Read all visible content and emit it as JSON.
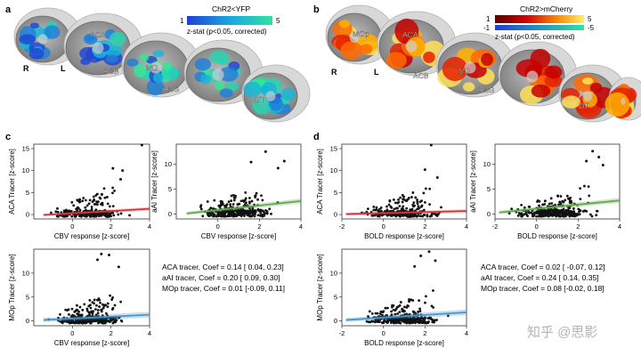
{
  "panel_labels": {
    "a": "a",
    "b": "b",
    "c": "c",
    "d": "d"
  },
  "brain_a": {
    "colorbar_title": "ChR2<YFP",
    "colorbar_min": "1",
    "colorbar_max": "5",
    "colorbar_caption": "z-stat (p<0.05, corrected)",
    "orientation_r": "R",
    "orientation_l": "L",
    "regions": [
      "ACA",
      "ACB",
      "MD",
      "AMG",
      "DT"
    ]
  },
  "brain_b": {
    "colorbar_title": "ChR2>mCherry",
    "colorbar_min": "1",
    "colorbar_max": "5",
    "colorbar_neg_min": "-1",
    "colorbar_neg_max": "-5",
    "colorbar_caption": "z-stat (p<0.05, corrected)",
    "orientation_r": "R",
    "orientation_l": "L",
    "regions": [
      "MOp",
      "ACA",
      "ACB",
      "MD",
      "AMG",
      "DT"
    ]
  },
  "colors": {
    "aca_line": "#d0373a",
    "aai_line": "#63a84f",
    "mop_line": "#4a95c9",
    "point": "#111111",
    "cool_low": "#1f3fd6",
    "cool_high": "#2fe3a0",
    "hot_low": "#b40000",
    "hot_high": "#fff066"
  },
  "stats_c": [
    "ACA tracer,  Coef = 0.14 [ 0.04, 0.23]",
    "aAI tracer,   Coef = 0.20  [ 0.09, 0.30]",
    "MOp tracer, Coef = 0.01  [-0.09, 0.11]"
  ],
  "stats_d": [
    "ACA tracer,  Coef = 0.02 [ -0.07, 0.12]",
    "aAI tracer,   Coef = 0.24  [ 0.14, 0.35]",
    "MOp tracer, Coef = 0.08  [-0.02, 0.18]"
  ],
  "watermark": "知乎 @思影",
  "chart_data": [
    {
      "id": "c_aca",
      "panel": "c",
      "type": "scatter",
      "xlabel": "CBV response [z-score]",
      "ylabel": "ACA Tracer [z-score]",
      "xlim": [
        -2,
        4
      ],
      "ylim": [
        -1,
        16
      ],
      "xticks": [
        0,
        2,
        4
      ],
      "yticks": [
        0,
        5,
        10,
        15
      ],
      "fit": {
        "x0": -1.5,
        "y0": -0.1,
        "x1": 4,
        "y1": 1.3
      },
      "ci_half_width": 0.4,
      "highlights": [
        {
          "x": 3.6,
          "y": 15.8
        },
        {
          "x": 2.1,
          "y": 10.5
        },
        {
          "x": 2.6,
          "y": 10
        },
        {
          "x": 2.5,
          "y": 8
        }
      ],
      "n_points": 260,
      "seed": 11
    },
    {
      "id": "c_aai",
      "panel": "c",
      "type": "scatter",
      "xlabel": "CBV response [z-score]",
      "ylabel": "aAI Tracer [z-score]",
      "xlim": [
        -2,
        4
      ],
      "ylim": [
        -1,
        14
      ],
      "xticks": [
        0,
        2,
        4
      ],
      "yticks": [
        0,
        5,
        10
      ],
      "fit": {
        "x0": -1.5,
        "y0": 0.1,
        "x1": 4,
        "y1": 2.6
      },
      "ci_half_width": 0.5,
      "highlights": [
        {
          "x": 2.3,
          "y": 12.5
        },
        {
          "x": 1.6,
          "y": 10.4
        },
        {
          "x": 3.2,
          "y": 10.6
        },
        {
          "x": 2.9,
          "y": 9.2
        }
      ],
      "n_points": 320,
      "seed": 23
    },
    {
      "id": "c_mop",
      "panel": "c",
      "type": "scatter",
      "xlabel": "CBV response [z-score]",
      "ylabel": "MOp Tracer [z-score]",
      "xlim": [
        -2,
        4
      ],
      "ylim": [
        -1,
        15
      ],
      "xticks": [
        0,
        2,
        4
      ],
      "yticks": [
        0,
        5,
        10
      ],
      "fit": {
        "x0": -1.5,
        "y0": 0.2,
        "x1": 4,
        "y1": 1.3
      },
      "ci_half_width": 0.6,
      "highlights": [
        {
          "x": 1.5,
          "y": 14
        },
        {
          "x": 1.9,
          "y": 13.8
        },
        {
          "x": 1.3,
          "y": 12.8
        },
        {
          "x": 2.4,
          "y": 11.3
        }
      ],
      "n_points": 320,
      "seed": 37
    },
    {
      "id": "d_aca",
      "panel": "d",
      "type": "scatter",
      "xlabel": "BOLD response [z-score]",
      "ylabel": "ACA Tracer [z-score]",
      "xlim": [
        -2,
        4
      ],
      "ylim": [
        -1,
        16
      ],
      "xticks": [
        -2,
        0,
        2,
        4
      ],
      "yticks": [
        0,
        5,
        10,
        15
      ],
      "fit": {
        "x0": -1.8,
        "y0": 0.1,
        "x1": 4,
        "y1": 0.8
      },
      "ci_half_width": 0.4,
      "highlights": [
        {
          "x": 2.3,
          "y": 15.8
        },
        {
          "x": 2.0,
          "y": 10.2
        },
        {
          "x": 2.6,
          "y": 8.4
        }
      ],
      "n_points": 260,
      "seed": 51
    },
    {
      "id": "d_aai",
      "panel": "d",
      "type": "scatter",
      "xlabel": "BOLD response [z-score]",
      "ylabel": "aAI Tracer [z-score]",
      "xlim": [
        -2,
        4
      ],
      "ylim": [
        -1,
        14
      ],
      "xticks": [
        -2,
        0,
        2,
        4
      ],
      "yticks": [
        0,
        5,
        10
      ],
      "fit": {
        "x0": -1.8,
        "y0": 0.3,
        "x1": 4,
        "y1": 2.7
      },
      "ci_half_width": 0.5,
      "highlights": [
        {
          "x": 2.7,
          "y": 12.6
        },
        {
          "x": 3.0,
          "y": 11.4
        },
        {
          "x": 2.4,
          "y": 10.6
        },
        {
          "x": 3.2,
          "y": 9.8
        }
      ],
      "n_points": 320,
      "seed": 67
    },
    {
      "id": "d_mop",
      "panel": "d",
      "type": "scatter",
      "xlabel": "BOLD response [z-score]",
      "ylabel": "MOp Tracer [z-score]",
      "xlim": [
        -2,
        4
      ],
      "ylim": [
        -1,
        15
      ],
      "xticks": [
        -2,
        0,
        2,
        4
      ],
      "yticks": [
        0,
        5,
        10
      ],
      "fit": {
        "x0": -1.8,
        "y0": 0.2,
        "x1": 4,
        "y1": 1.8
      },
      "ci_half_width": 0.6,
      "highlights": [
        {
          "x": 2.2,
          "y": 14.5
        },
        {
          "x": 1.8,
          "y": 13.6
        },
        {
          "x": 2.5,
          "y": 12.6
        },
        {
          "x": 1.5,
          "y": 11.4
        }
      ],
      "n_points": 320,
      "seed": 79
    }
  ]
}
